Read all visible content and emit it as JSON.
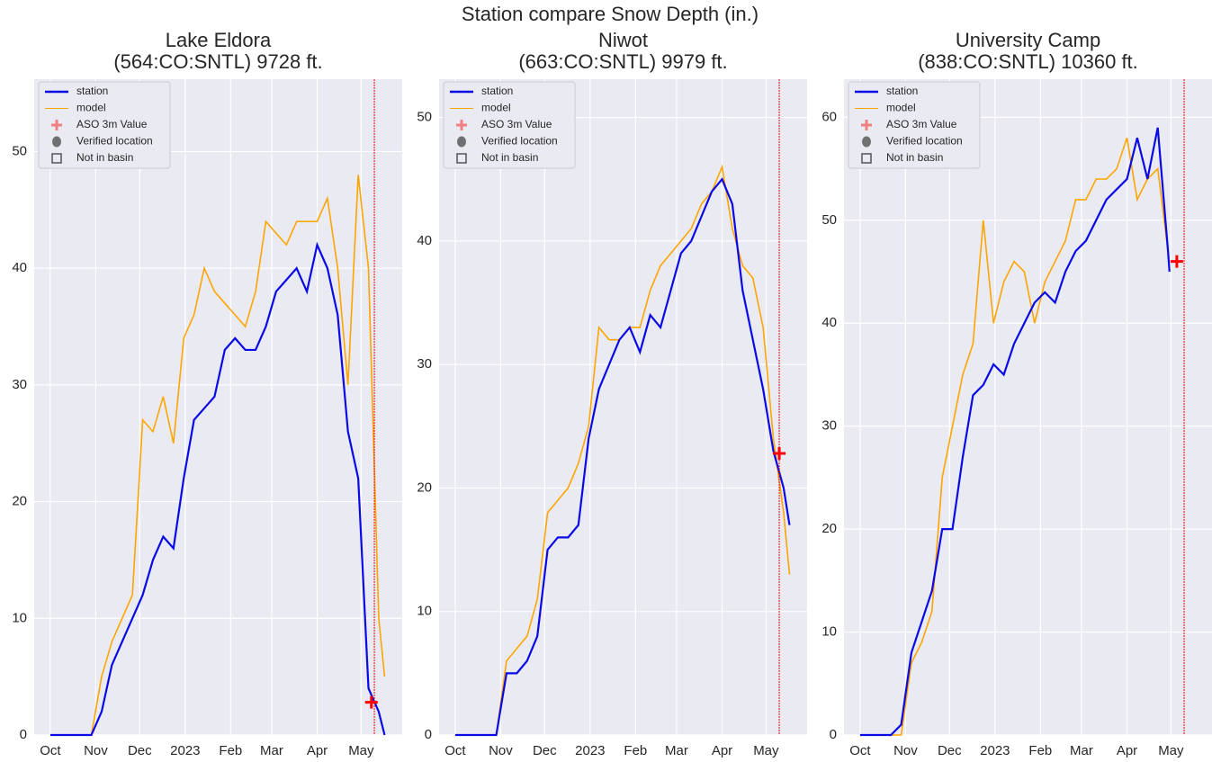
{
  "title": "Station compare Snow Depth (in.)",
  "chart_data": [
    {
      "type": "line",
      "title": [
        "Lake Eldora",
        "(564:CO:SNTL) 9728 ft."
      ],
      "x": [
        0,
        7,
        14,
        21,
        28,
        35,
        42,
        49,
        56,
        63,
        70,
        77,
        84,
        91,
        98,
        105,
        112,
        119,
        126,
        133,
        140,
        147,
        154,
        161,
        168,
        175,
        182,
        189,
        196,
        203,
        210,
        217,
        224,
        228
      ],
      "series": [
        {
          "name": "station",
          "color": "#0a0ae6",
          "values": [
            0,
            0,
            0,
            0,
            0,
            2,
            6,
            8,
            10,
            12,
            15,
            17,
            16,
            22,
            27,
            28,
            29,
            33,
            34,
            33,
            33,
            35,
            38,
            39,
            40,
            38,
            42,
            40,
            36,
            26,
            22,
            4,
            2,
            0
          ]
        },
        {
          "name": "model",
          "color": "#ffa500",
          "values": [
            0,
            0,
            0,
            0,
            0,
            5,
            8,
            10,
            12,
            27,
            26,
            29,
            25,
            34,
            36,
            40,
            38,
            37,
            36,
            35,
            38,
            44,
            43,
            42,
            44,
            44,
            44,
            46,
            40,
            30,
            48,
            40,
            10,
            5
          ]
        }
      ],
      "marker": {
        "name": "ASO 3m Value",
        "color": "#ff0000",
        "x": 219,
        "value": 2.8
      },
      "date_line": 221,
      "legend_extra": [
        "Verified location",
        "Not in basin"
      ],
      "xlim": [
        -11,
        240
      ],
      "xticks": [
        {
          "value": 0,
          "label": "Oct"
        },
        {
          "value": 31,
          "label": "Nov"
        },
        {
          "value": 61,
          "label": "Dec"
        },
        {
          "value": 92,
          "label": "2023"
        },
        {
          "value": 123,
          "label": "Feb"
        },
        {
          "value": 151,
          "label": "Mar"
        },
        {
          "value": 182,
          "label": "Apr"
        },
        {
          "value": 212,
          "label": "May"
        }
      ],
      "ylim": [
        0,
        56.2
      ],
      "yticks": [
        0,
        10,
        20,
        30,
        40,
        50
      ],
      "grid": true
    },
    {
      "type": "line",
      "title": [
        "Niwot",
        "(663:CO:SNTL) 9979 ft."
      ],
      "x": [
        0,
        7,
        14,
        21,
        28,
        35,
        42,
        49,
        56,
        63,
        70,
        77,
        84,
        91,
        98,
        105,
        112,
        119,
        126,
        133,
        140,
        147,
        154,
        161,
        168,
        175,
        182,
        189,
        196,
        203,
        210,
        217,
        224,
        228
      ],
      "series": [
        {
          "name": "station",
          "color": "#0a0ae6",
          "values": [
            0,
            0,
            0,
            0,
            0,
            5,
            5,
            6,
            8,
            15,
            16,
            16,
            17,
            24,
            28,
            30,
            32,
            33,
            31,
            34,
            33,
            36,
            39,
            40,
            42,
            44,
            45,
            43,
            36,
            32,
            28,
            23,
            20,
            17
          ]
        },
        {
          "name": "model",
          "color": "#ffa500",
          "values": [
            0,
            0,
            0,
            0,
            0,
            6,
            7,
            8,
            11,
            18,
            19,
            20,
            22,
            25,
            33,
            32,
            32,
            33,
            33,
            36,
            38,
            39,
            40,
            41,
            43,
            44,
            46,
            41,
            38,
            37,
            33,
            24,
            18,
            13
          ]
        }
      ],
      "marker": {
        "name": "ASO 3m Value",
        "color": "#ff0000",
        "x": 221,
        "value": 22.8
      },
      "date_line": 221,
      "legend_extra": [
        "Verified location",
        "Not in basin"
      ],
      "xlim": [
        -11,
        240
      ],
      "xticks": [
        {
          "value": 0,
          "label": "Oct"
        },
        {
          "value": 31,
          "label": "Nov"
        },
        {
          "value": 61,
          "label": "Dec"
        },
        {
          "value": 92,
          "label": "2023"
        },
        {
          "value": 123,
          "label": "Feb"
        },
        {
          "value": 151,
          "label": "Mar"
        },
        {
          "value": 182,
          "label": "Apr"
        },
        {
          "value": 212,
          "label": "May"
        }
      ],
      "ylim": [
        0,
        53.1
      ],
      "yticks": [
        0,
        10,
        20,
        30,
        40,
        50
      ],
      "grid": true
    },
    {
      "type": "line",
      "title": [
        "University Camp",
        "(838:CO:SNTL) 10360 ft."
      ],
      "x": [
        0,
        7,
        14,
        21,
        28,
        35,
        42,
        49,
        56,
        63,
        70,
        77,
        84,
        91,
        98,
        105,
        112,
        119,
        126,
        133,
        140,
        147,
        154,
        161,
        168,
        175,
        182,
        189,
        196,
        203,
        210,
        211
      ],
      "series": [
        {
          "name": "station",
          "color": "#0a0ae6",
          "values": [
            0,
            0,
            0,
            0,
            1,
            8,
            11,
            14,
            20,
            20,
            27,
            33,
            34,
            36,
            35,
            38,
            40,
            42,
            43,
            42,
            45,
            47,
            48,
            50,
            52,
            53,
            54,
            58,
            54,
            59,
            47,
            45
          ]
        },
        {
          "name": "model",
          "color": "#ffa500",
          "values": [
            0,
            0,
            0,
            0,
            0,
            7,
            9,
            12,
            25,
            30,
            35,
            38,
            50,
            40,
            44,
            46,
            45,
            40,
            44,
            46,
            48,
            52,
            52,
            54,
            54,
            55,
            58,
            52,
            54,
            55,
            47,
            45
          ]
        }
      ],
      "marker": {
        "name": "ASO 3m Value",
        "color": "#ff0000",
        "x": 216,
        "value": 46
      },
      "date_line": 221,
      "legend_extra": [
        "Verified location",
        "Not in basin"
      ],
      "xlim": [
        -11,
        240
      ],
      "xticks": [
        {
          "value": 0,
          "label": "Oct"
        },
        {
          "value": 31,
          "label": "Nov"
        },
        {
          "value": 61,
          "label": "Dec"
        },
        {
          "value": 92,
          "label": "2023"
        },
        {
          "value": 123,
          "label": "Feb"
        },
        {
          "value": 151,
          "label": "Mar"
        },
        {
          "value": 182,
          "label": "Apr"
        },
        {
          "value": 212,
          "label": "May"
        }
      ],
      "ylim": [
        0,
        63.7
      ],
      "yticks": [
        0,
        10,
        20,
        30,
        40,
        50,
        60
      ],
      "grid": true
    }
  ]
}
